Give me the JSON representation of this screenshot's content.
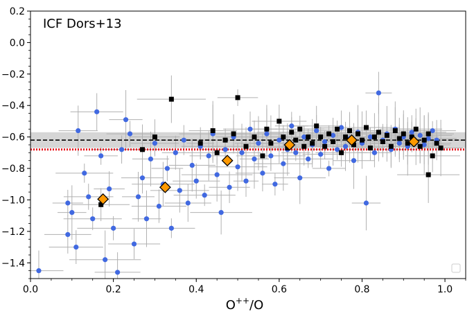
{
  "chart_data": {
    "type": "scatter",
    "title": "ICF Dors+13",
    "xlabel": "O",
    "xlabel_sup": "++",
    "xlabel_suffix": "/O",
    "ylabel": "",
    "xlim": [
      0.0,
      1.05
    ],
    "ylim": [
      -1.5,
      0.2
    ],
    "x_ticks": [
      0.0,
      0.2,
      0.4,
      0.6,
      0.8,
      1.0
    ],
    "x_tick_labels": [
      "0.0",
      "0.2",
      "0.4",
      "0.6",
      "0.8",
      "1.0"
    ],
    "y_ticks": [
      0.2,
      0.0,
      -0.2,
      -0.4,
      -0.6,
      -0.8,
      -1.0,
      -1.2,
      -1.4
    ],
    "y_tick_labels": [
      "0.2",
      "0.0",
      "−0.2",
      "−0.4",
      "−0.6",
      "−0.8",
      "−1.0",
      "−1.2",
      "−1.4"
    ],
    "shaded_band": {
      "ymin": -0.67,
      "ymax": -0.57,
      "color": "#cccccc"
    },
    "reference_lines": [
      {
        "name": "black-dashed",
        "y": -0.62,
        "style": "dashed",
        "color": "#000000"
      },
      {
        "name": "red-dotted",
        "y": -0.68,
        "style": "dotted",
        "color": "#e8141c"
      }
    ],
    "series": [
      {
        "name": "blue-circles",
        "marker": "circle",
        "color": "#4169e1",
        "points": [
          [
            0.02,
            -1.45
          ],
          [
            0.09,
            -1.02
          ],
          [
            0.09,
            -1.22
          ],
          [
            0.1,
            -1.08
          ],
          [
            0.11,
            -1.3
          ],
          [
            0.115,
            -0.56
          ],
          [
            0.13,
            -0.83
          ],
          [
            0.14,
            -0.98
          ],
          [
            0.15,
            -1.12
          ],
          [
            0.16,
            -0.44
          ],
          [
            0.17,
            -0.72
          ],
          [
            0.18,
            -1.38
          ],
          [
            0.19,
            -0.93
          ],
          [
            0.2,
            -1.18
          ],
          [
            0.21,
            -1.46
          ],
          [
            0.22,
            -0.68
          ],
          [
            0.23,
            -0.49
          ],
          [
            0.24,
            -0.58
          ],
          [
            0.25,
            -1.28
          ],
          [
            0.26,
            -0.98
          ],
          [
            0.27,
            -0.86
          ],
          [
            0.28,
            -1.12
          ],
          [
            0.29,
            -0.74
          ],
          [
            0.3,
            -0.64
          ],
          [
            0.31,
            -1.04
          ],
          [
            0.32,
            -0.9
          ],
          [
            0.33,
            -0.8
          ],
          [
            0.34,
            -1.18
          ],
          [
            0.35,
            -0.7
          ],
          [
            0.36,
            -0.94
          ],
          [
            0.37,
            -0.62
          ],
          [
            0.38,
            -1.02
          ],
          [
            0.39,
            -0.78
          ],
          [
            0.4,
            -0.88
          ],
          [
            0.41,
            -0.66
          ],
          [
            0.42,
            -0.97
          ],
          [
            0.43,
            -0.72
          ],
          [
            0.44,
            -0.58
          ],
          [
            0.45,
            -0.84
          ],
          [
            0.46,
            -1.08
          ],
          [
            0.47,
            -0.68
          ],
          [
            0.48,
            -0.92
          ],
          [
            0.49,
            -0.6
          ],
          [
            0.5,
            -0.79
          ],
          [
            0.51,
            -0.7
          ],
          [
            0.52,
            -0.88
          ],
          [
            0.53,
            -0.55
          ],
          [
            0.54,
            -0.74
          ],
          [
            0.55,
            -0.64
          ],
          [
            0.56,
            -0.83
          ],
          [
            0.57,
            -0.58
          ],
          [
            0.58,
            -0.72
          ],
          [
            0.59,
            -0.9
          ],
          [
            0.6,
            -0.62
          ],
          [
            0.61,
            -0.77
          ],
          [
            0.62,
            -0.68
          ],
          [
            0.63,
            -0.53
          ],
          [
            0.64,
            -0.7
          ],
          [
            0.65,
            -0.86
          ],
          [
            0.66,
            -0.6
          ],
          [
            0.67,
            -0.74
          ],
          [
            0.68,
            -0.65
          ],
          [
            0.69,
            -0.56
          ],
          [
            0.7,
            -0.71
          ],
          [
            0.71,
            -0.63
          ],
          [
            0.72,
            -0.8
          ],
          [
            0.73,
            -0.59
          ],
          [
            0.74,
            -0.68
          ],
          [
            0.75,
            -0.54
          ],
          [
            0.76,
            -0.66
          ],
          [
            0.77,
            -0.61
          ],
          [
            0.78,
            -0.75
          ],
          [
            0.79,
            -0.57
          ],
          [
            0.8,
            -0.64
          ],
          [
            0.81,
            -1.02
          ],
          [
            0.82,
            -0.6
          ],
          [
            0.83,
            -0.7
          ],
          [
            0.84,
            -0.32
          ],
          [
            0.85,
            -0.62
          ],
          [
            0.86,
            -0.58
          ],
          [
            0.87,
            -0.68
          ],
          [
            0.88,
            -0.55
          ],
          [
            0.89,
            -0.64
          ],
          [
            0.9,
            -0.6
          ],
          [
            0.91,
            -0.66
          ],
          [
            0.92,
            -0.57
          ],
          [
            0.93,
            -0.63
          ],
          [
            0.94,
            -0.59
          ],
          [
            0.95,
            -0.65
          ],
          [
            0.96,
            -0.61
          ],
          [
            0.97,
            -0.56
          ],
          [
            0.98,
            -0.62
          ]
        ]
      },
      {
        "name": "black-squares",
        "marker": "square",
        "color": "#000000",
        "points": [
          [
            0.17,
            -1.03
          ],
          [
            0.27,
            -0.68
          ],
          [
            0.3,
            -0.6
          ],
          [
            0.34,
            -0.36
          ],
          [
            0.41,
            -0.64
          ],
          [
            0.44,
            -0.56
          ],
          [
            0.45,
            -0.7
          ],
          [
            0.47,
            -0.62
          ],
          [
            0.49,
            -0.58
          ],
          [
            0.5,
            -0.35
          ],
          [
            0.52,
            -0.66
          ],
          [
            0.54,
            -0.6
          ],
          [
            0.56,
            -0.72
          ],
          [
            0.57,
            -0.55
          ],
          [
            0.58,
            -0.64
          ],
          [
            0.6,
            -0.5
          ],
          [
            0.61,
            -0.6
          ],
          [
            0.62,
            -0.67
          ],
          [
            0.63,
            -0.57
          ],
          [
            0.64,
            -0.62
          ],
          [
            0.65,
            -0.55
          ],
          [
            0.66,
            -0.66
          ],
          [
            0.67,
            -0.6
          ],
          [
            0.68,
            -0.64
          ],
          [
            0.69,
            -0.53
          ],
          [
            0.7,
            -0.6
          ],
          [
            0.71,
            -0.66
          ],
          [
            0.72,
            -0.58
          ],
          [
            0.73,
            -0.63
          ],
          [
            0.74,
            -0.55
          ],
          [
            0.75,
            -0.7
          ],
          [
            0.76,
            -0.6
          ],
          [
            0.77,
            -0.56
          ],
          [
            0.78,
            -0.65
          ],
          [
            0.79,
            -0.58
          ],
          [
            0.8,
            -0.62
          ],
          [
            0.81,
            -0.54
          ],
          [
            0.82,
            -0.67
          ],
          [
            0.83,
            -0.6
          ],
          [
            0.84,
            -0.57
          ],
          [
            0.85,
            -0.63
          ],
          [
            0.86,
            -0.59
          ],
          [
            0.87,
            -0.66
          ],
          [
            0.88,
            -0.56
          ],
          [
            0.89,
            -0.61
          ],
          [
            0.9,
            -0.58
          ],
          [
            0.91,
            -0.64
          ],
          [
            0.92,
            -0.6
          ],
          [
            0.93,
            -0.55
          ],
          [
            0.94,
            -0.66
          ],
          [
            0.95,
            -0.62
          ],
          [
            0.96,
            -0.58
          ],
          [
            0.97,
            -0.72
          ],
          [
            0.98,
            -0.64
          ],
          [
            0.99,
            -0.67
          ],
          [
            0.96,
            -0.84
          ]
        ]
      },
      {
        "name": "orange-diamonds",
        "marker": "diamond",
        "color": "#ff9900",
        "points": [
          [
            0.175,
            -0.995
          ],
          [
            0.325,
            -0.92
          ],
          [
            0.475,
            -0.75
          ],
          [
            0.625,
            -0.65
          ],
          [
            0.775,
            -0.62
          ],
          [
            0.925,
            -0.63
          ]
        ]
      }
    ],
    "legend": {
      "position": "bottom-right",
      "entries": []
    }
  }
}
